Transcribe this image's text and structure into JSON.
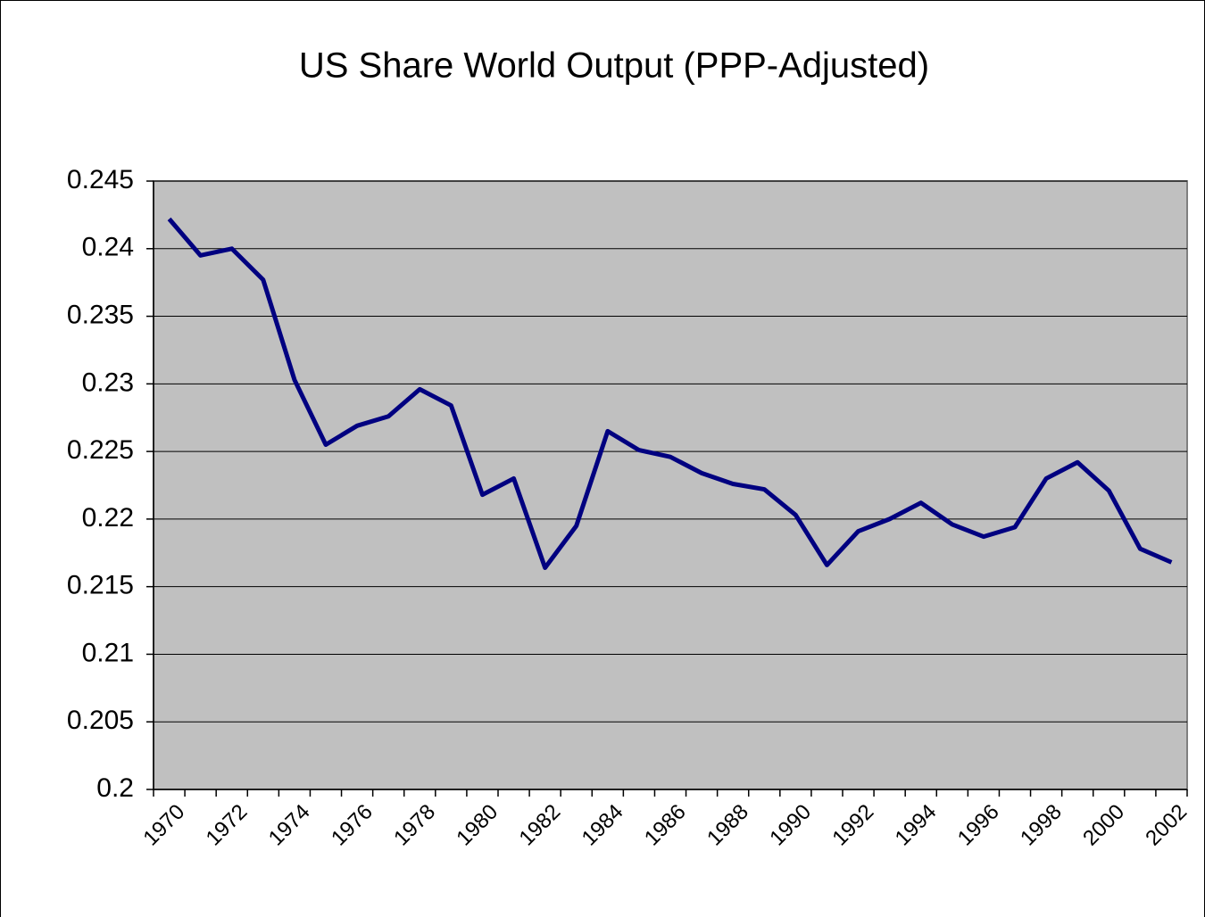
{
  "chart_data": {
    "type": "line",
    "title": "US Share World Output (PPP-Adjusted)",
    "categories": [
      "1970",
      null,
      "1972",
      null,
      "1974",
      null,
      "1976",
      null,
      "1978",
      null,
      "1980",
      null,
      "1982",
      null,
      "1984",
      null,
      "1986",
      null,
      "1988",
      null,
      "1990",
      null,
      "1992",
      null,
      "1994",
      null,
      "1996",
      null,
      "1998",
      null,
      "2000",
      null,
      "2002"
    ],
    "series": [
      {
        "name": "US Share",
        "color": "#000080",
        "values": [
          0.2422,
          0.2395,
          0.24,
          0.2377,
          0.2303,
          0.2255,
          0.2269,
          0.2276,
          0.2296,
          0.2284,
          0.2218,
          0.223,
          0.2164,
          0.2195,
          0.2265,
          0.2251,
          0.2246,
          0.2234,
          0.2226,
          0.2222,
          0.2203,
          0.2166,
          0.2191,
          0.22,
          0.2212,
          0.2196,
          0.2187,
          0.2194,
          0.223,
          0.2242,
          0.2221,
          0.2178,
          0.2168
        ]
      }
    ],
    "ylim": [
      0.2,
      0.245
    ],
    "yticks": [
      0.2,
      0.205,
      0.21,
      0.215,
      0.22,
      0.225,
      0.23,
      0.235,
      0.24,
      0.245
    ],
    "grid": true,
    "plot_background": "#c0c0c0"
  }
}
